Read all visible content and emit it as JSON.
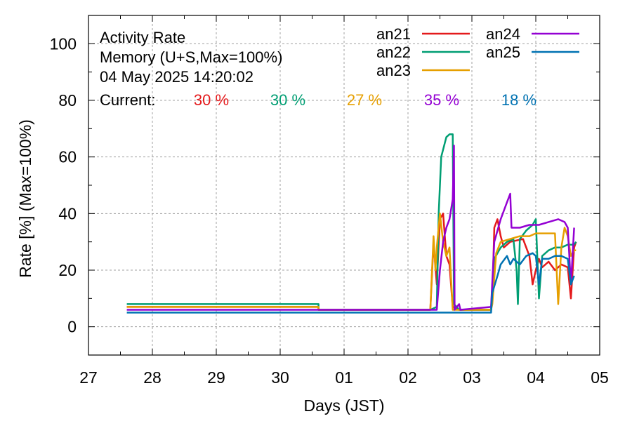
{
  "chart_data": {
    "type": "line",
    "header_lines": [
      "Activity Rate",
      "Memory (U+S,Max=100%)",
      "04 May 2025 14:20:02"
    ],
    "xlabel": "Days (JST)",
    "ylabel": "Rate [%]  (Max=100%)",
    "current_label": "Current:",
    "xlim": [
      0,
      8
    ],
    "ylim": [
      -10,
      110
    ],
    "y_ticks": [
      0,
      20,
      40,
      60,
      80,
      100
    ],
    "x_ticks": [
      {
        "x": 0,
        "label": "27"
      },
      {
        "x": 1,
        "label": "28"
      },
      {
        "x": 2,
        "label": "29"
      },
      {
        "x": 3,
        "label": "30"
      },
      {
        "x": 4,
        "label": "01"
      },
      {
        "x": 5,
        "label": "02"
      },
      {
        "x": 6,
        "label": "03"
      },
      {
        "x": 7,
        "label": "04"
      },
      {
        "x": 8,
        "label": "05"
      }
    ],
    "grid": true,
    "legend_position": "top-right",
    "series": [
      {
        "name": "an21",
        "color": "#e41a1c",
        "current": "30 %",
        "points": [
          [
            0.6,
            7
          ],
          [
            3.6,
            7
          ],
          [
            3.6,
            6
          ],
          [
            5.35,
            6
          ],
          [
            5.4,
            30
          ],
          [
            5.45,
            15
          ],
          [
            5.5,
            38
          ],
          [
            5.55,
            40
          ],
          [
            5.6,
            25
          ],
          [
            5.65,
            22
          ],
          [
            5.7,
            7
          ],
          [
            5.8,
            6
          ],
          [
            6.3,
            6
          ],
          [
            6.32,
            10
          ],
          [
            6.35,
            35
          ],
          [
            6.4,
            38
          ],
          [
            6.45,
            32
          ],
          [
            6.5,
            28
          ],
          [
            6.6,
            30
          ],
          [
            6.8,
            31
          ],
          [
            6.9,
            25
          ],
          [
            6.95,
            15
          ],
          [
            7.0,
            20
          ],
          [
            7.05,
            24
          ],
          [
            7.1,
            21
          ],
          [
            7.2,
            23
          ],
          [
            7.3,
            20
          ],
          [
            7.4,
            22
          ],
          [
            7.5,
            21
          ],
          [
            7.55,
            10
          ],
          [
            7.6,
            28
          ],
          [
            7.63,
            30
          ]
        ]
      },
      {
        "name": "an22",
        "color": "#009e73",
        "current": "30 %",
        "points": [
          [
            0.6,
            8
          ],
          [
            3.6,
            8
          ],
          [
            3.6,
            6
          ],
          [
            5.35,
            6
          ],
          [
            5.45,
            7
          ],
          [
            5.48,
            40
          ],
          [
            5.52,
            60
          ],
          [
            5.6,
            67
          ],
          [
            5.65,
            68
          ],
          [
            5.7,
            68
          ],
          [
            5.72,
            8
          ],
          [
            5.8,
            6
          ],
          [
            6.3,
            6
          ],
          [
            6.32,
            15
          ],
          [
            6.35,
            24
          ],
          [
            6.45,
            28
          ],
          [
            6.55,
            30
          ],
          [
            6.65,
            31
          ],
          [
            6.7,
            20
          ],
          [
            6.72,
            8
          ],
          [
            6.75,
            31
          ],
          [
            6.85,
            34
          ],
          [
            6.95,
            36
          ],
          [
            7.0,
            38
          ],
          [
            7.05,
            10
          ],
          [
            7.1,
            25
          ],
          [
            7.2,
            27
          ],
          [
            7.3,
            28
          ],
          [
            7.4,
            28
          ],
          [
            7.5,
            29
          ],
          [
            7.6,
            29
          ],
          [
            7.63,
            30
          ]
        ]
      },
      {
        "name": "an23",
        "color": "#e69f00",
        "current": "27 %",
        "points": [
          [
            0.6,
            7
          ],
          [
            3.6,
            7
          ],
          [
            3.6,
            6
          ],
          [
            5.35,
            6
          ],
          [
            5.4,
            32
          ],
          [
            5.43,
            20
          ],
          [
            5.45,
            28
          ],
          [
            5.5,
            40
          ],
          [
            5.55,
            30
          ],
          [
            5.6,
            25
          ],
          [
            5.65,
            28
          ],
          [
            5.7,
            6
          ],
          [
            5.8,
            6
          ],
          [
            6.3,
            6
          ],
          [
            6.32,
            8
          ],
          [
            6.38,
            26
          ],
          [
            6.45,
            30
          ],
          [
            6.6,
            31
          ],
          [
            6.75,
            32
          ],
          [
            6.9,
            32
          ],
          [
            7.0,
            33
          ],
          [
            7.1,
            33
          ],
          [
            7.2,
            33
          ],
          [
            7.3,
            33
          ],
          [
            7.35,
            8
          ],
          [
            7.4,
            28
          ],
          [
            7.45,
            35
          ],
          [
            7.5,
            32
          ],
          [
            7.55,
            25
          ],
          [
            7.6,
            27
          ],
          [
            7.63,
            27
          ]
        ]
      },
      {
        "name": "an24",
        "color": "#9400d3",
        "current": "35 %",
        "points": [
          [
            0.6,
            6
          ],
          [
            3.6,
            6
          ],
          [
            3.6,
            6
          ],
          [
            5.35,
            6
          ],
          [
            5.45,
            6
          ],
          [
            5.5,
            20
          ],
          [
            5.55,
            30
          ],
          [
            5.6,
            35
          ],
          [
            5.65,
            38
          ],
          [
            5.7,
            45
          ],
          [
            5.72,
            64
          ],
          [
            5.73,
            6
          ],
          [
            5.8,
            8
          ],
          [
            5.82,
            6
          ],
          [
            6.3,
            7
          ],
          [
            6.35,
            30
          ],
          [
            6.45,
            38
          ],
          [
            6.55,
            44
          ],
          [
            6.6,
            47
          ],
          [
            6.62,
            35
          ],
          [
            6.75,
            35
          ],
          [
            6.9,
            36
          ],
          [
            7.05,
            36
          ],
          [
            7.2,
            37
          ],
          [
            7.35,
            38
          ],
          [
            7.45,
            37
          ],
          [
            7.5,
            35
          ],
          [
            7.55,
            15
          ],
          [
            7.6,
            35
          ]
        ]
      },
      {
        "name": "an25",
        "color": "#0072b2",
        "current": "18 %",
        "points": [
          [
            0.6,
            5
          ],
          [
            3.6,
            5
          ],
          [
            3.6,
            5
          ],
          [
            5.35,
            5
          ],
          [
            5.5,
            5
          ],
          [
            5.75,
            5
          ],
          [
            6.3,
            5
          ],
          [
            6.32,
            12
          ],
          [
            6.4,
            18
          ],
          [
            6.45,
            22
          ],
          [
            6.55,
            25
          ],
          [
            6.6,
            22
          ],
          [
            6.65,
            24
          ],
          [
            6.75,
            22
          ],
          [
            6.85,
            25
          ],
          [
            6.95,
            26
          ],
          [
            7.0,
            25
          ],
          [
            7.05,
            15
          ],
          [
            7.1,
            24
          ],
          [
            7.2,
            24
          ],
          [
            7.3,
            25
          ],
          [
            7.4,
            25
          ],
          [
            7.5,
            24
          ],
          [
            7.55,
            15
          ],
          [
            7.6,
            18
          ]
        ]
      }
    ]
  }
}
